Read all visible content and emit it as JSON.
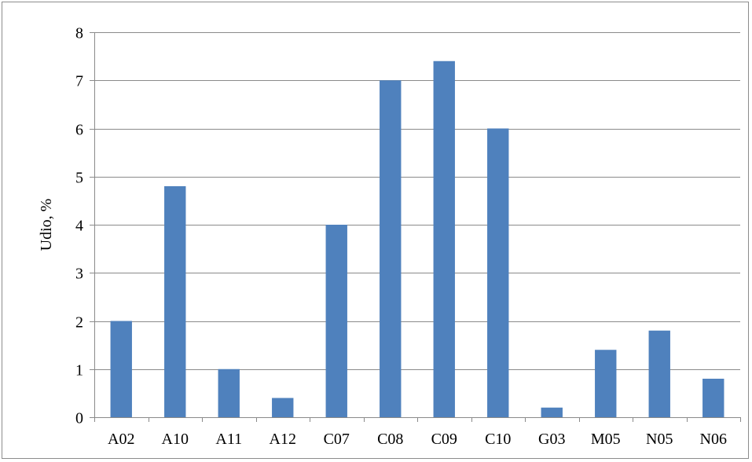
{
  "chart_data": {
    "type": "bar",
    "title": "",
    "xlabel": "",
    "ylabel": "Udio, %",
    "categories": [
      "A02",
      "A10",
      "A11",
      "A12",
      "C07",
      "C08",
      "C09",
      "C10",
      "G03",
      "M05",
      "N05",
      "N06"
    ],
    "values": [
      2,
      4.8,
      1,
      0.4,
      4,
      7,
      7.4,
      6,
      0.2,
      1.4,
      1.8,
      0.8
    ],
    "ylim": [
      0,
      8
    ],
    "yticks": [
      "0",
      "1",
      "2",
      "3",
      "4",
      "5",
      "6",
      "7",
      "8"
    ],
    "grid": "horizontal",
    "legend": "none",
    "colors": {
      "bar": "#4f81bd",
      "grid": "#8a8a8a"
    }
  }
}
